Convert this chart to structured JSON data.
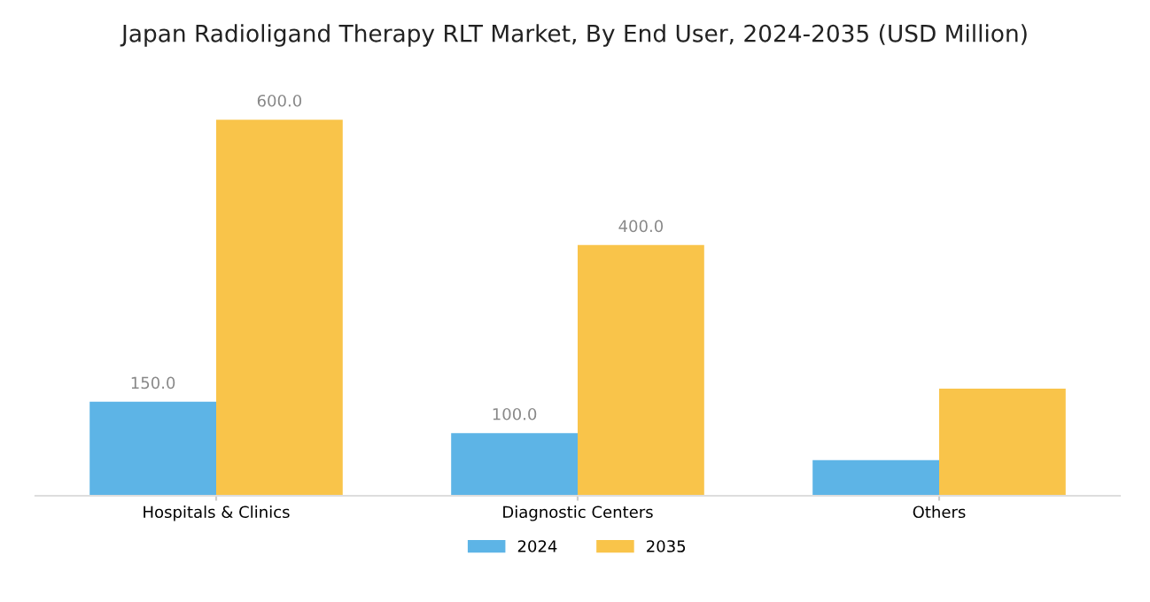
{
  "chart_data": {
    "type": "bar",
    "title": "Japan Radioligand Therapy RLT Market, By End User, 2024-2035 (USD Million)",
    "categories": [
      "Hospitals & Clinics",
      "Diagnostic Centers",
      "Others"
    ],
    "series": [
      {
        "name": "2024",
        "color": "#5db4e6",
        "values": [
          150,
          100,
          57
        ],
        "value_labels": [
          "150.0",
          "100.0",
          null
        ]
      },
      {
        "name": "2035",
        "color": "#f9c44a",
        "values": [
          600,
          400,
          171
        ],
        "value_labels": [
          "600.0",
          "400.0",
          null
        ]
      }
    ],
    "legend": "bottom",
    "grid": false
  }
}
